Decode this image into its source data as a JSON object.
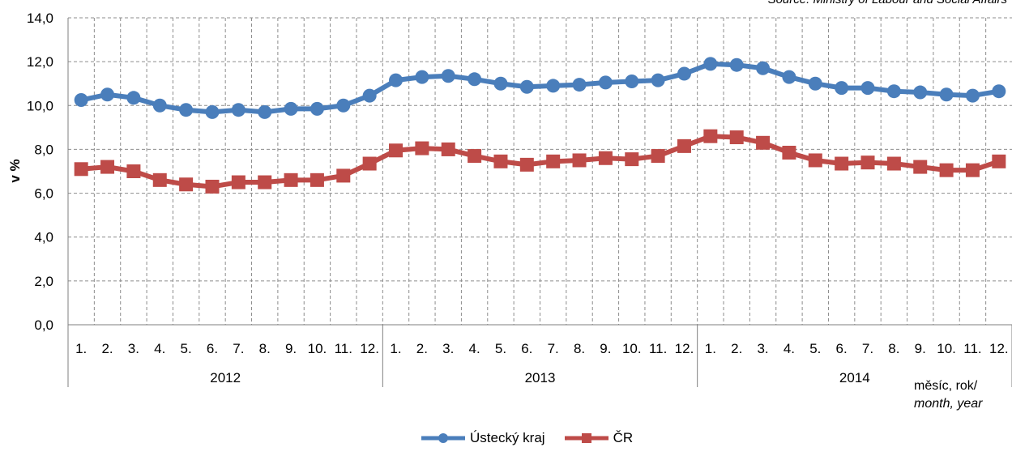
{
  "source_text": "Source: Ministry of Labour and Social Affairs",
  "x_unit": {
    "line1": "měsíc, rok/",
    "line2": "month, year"
  },
  "chart_data": {
    "type": "line",
    "title": "",
    "ylabel": "v %",
    "xlabel": "měsíc, rok/ month, year",
    "ylim": [
      0,
      14
    ],
    "y_ticks": [
      "0,0",
      "2,0",
      "4,0",
      "6,0",
      "8,0",
      "10,0",
      "12,0",
      "14,0"
    ],
    "grid": true,
    "legend_position": "bottom",
    "months": [
      "1.",
      "2.",
      "3.",
      "4.",
      "5.",
      "6.",
      "7.",
      "8.",
      "9.",
      "10.",
      "11.",
      "12."
    ],
    "years": [
      "2012",
      "2013",
      "2014"
    ],
    "series": [
      {
        "name": "Ústecký kraj",
        "color": "#4a7ebb",
        "values": [
          10.25,
          10.5,
          10.35,
          10.0,
          9.8,
          9.7,
          9.8,
          9.7,
          9.85,
          9.85,
          10.0,
          10.45,
          11.15,
          11.3,
          11.35,
          11.2,
          11.0,
          10.85,
          10.9,
          10.95,
          11.05,
          11.1,
          11.15,
          11.45,
          11.9,
          11.85,
          11.7,
          11.3,
          11.0,
          10.8,
          10.8,
          10.65,
          10.6,
          10.5,
          10.45,
          10.65
        ]
      },
      {
        "name": "ČR",
        "color": "#be4b48",
        "values": [
          7.1,
          7.2,
          7.0,
          6.6,
          6.4,
          6.3,
          6.5,
          6.5,
          6.6,
          6.6,
          6.8,
          7.35,
          7.95,
          8.05,
          8.0,
          7.7,
          7.45,
          7.3,
          7.45,
          7.5,
          7.6,
          7.55,
          7.7,
          8.15,
          8.6,
          8.55,
          8.3,
          7.85,
          7.5,
          7.35,
          7.4,
          7.35,
          7.2,
          7.05,
          7.05,
          7.45
        ]
      }
    ]
  }
}
